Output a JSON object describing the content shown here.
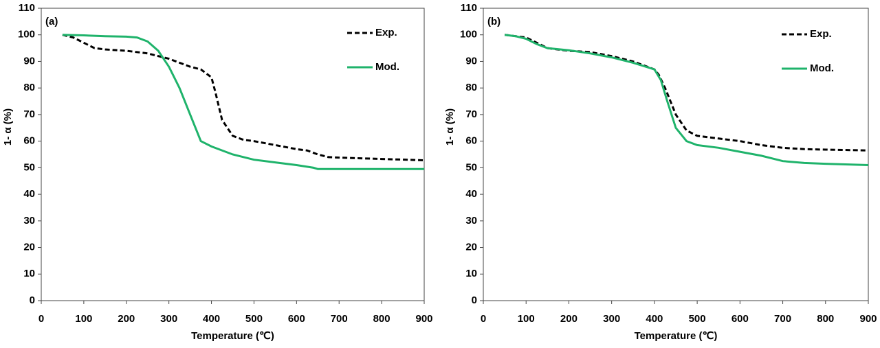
{
  "chart_data": [
    {
      "type": "line",
      "panel_label": "(a)",
      "x_label": "Temperature (℃)",
      "y_label": "1- α (%)",
      "xlim": [
        0,
        900
      ],
      "xticks": [
        0,
        100,
        200,
        300,
        400,
        500,
        600,
        700,
        800,
        900
      ],
      "ylim": [
        0,
        110
      ],
      "yticks": [
        0,
        10,
        20,
        30,
        40,
        50,
        60,
        70,
        80,
        90,
        100,
        110
      ],
      "series": [
        {
          "name": "Exp.",
          "color": "#000000",
          "dashed": true,
          "x": [
            50,
            75,
            100,
            125,
            150,
            200,
            250,
            300,
            350,
            375,
            400,
            410,
            425,
            450,
            475,
            500,
            550,
            600,
            625,
            650,
            675,
            700,
            800,
            900
          ],
          "values": [
            100,
            99,
            97,
            95,
            94.5,
            94,
            93,
            91,
            88,
            87,
            84,
            78,
            68,
            62,
            60.5,
            60,
            58.5,
            57,
            56.5,
            55,
            54,
            53.8,
            53.3,
            52.8
          ]
        },
        {
          "name": "Mod.",
          "color": "#1fb36b",
          "dashed": false,
          "x": [
            50,
            100,
            150,
            200,
            225,
            250,
            275,
            300,
            325,
            350,
            375,
            400,
            450,
            500,
            550,
            600,
            640,
            650,
            700,
            800,
            900
          ],
          "values": [
            100,
            99.8,
            99.5,
            99.3,
            99,
            97.5,
            94,
            88,
            80,
            70,
            60,
            58,
            55,
            53,
            52,
            51,
            50,
            49.5,
            49.5,
            49.5,
            49.5
          ]
        }
      ]
    },
    {
      "type": "line",
      "panel_label": "(b)",
      "x_label": "Temperature (℃)",
      "y_label": "1- α (%)",
      "xlim": [
        0,
        900
      ],
      "xticks": [
        0,
        100,
        200,
        300,
        400,
        500,
        600,
        700,
        800,
        900
      ],
      "ylim": [
        0,
        110
      ],
      "yticks": [
        0,
        10,
        20,
        30,
        40,
        50,
        60,
        70,
        80,
        90,
        100,
        110
      ],
      "series": [
        {
          "name": "Exp.",
          "color": "#000000",
          "dashed": true,
          "x": [
            50,
            100,
            125,
            150,
            200,
            250,
            300,
            350,
            400,
            410,
            425,
            450,
            475,
            500,
            550,
            600,
            650,
            700,
            750,
            800,
            900
          ],
          "values": [
            100,
            99,
            97,
            95,
            94,
            93.5,
            92,
            90,
            87,
            85,
            80,
            70,
            64,
            62,
            61,
            60,
            58.5,
            57.5,
            57,
            56.8,
            56.5
          ]
        },
        {
          "name": "Mod.",
          "color": "#1fb36b",
          "dashed": false,
          "x": [
            50,
            75,
            100,
            125,
            150,
            200,
            250,
            300,
            350,
            400,
            415,
            430,
            450,
            475,
            500,
            550,
            600,
            650,
            700,
            750,
            800,
            900
          ],
          "values": [
            100,
            99.5,
            98.5,
            96.5,
            95,
            94.2,
            93,
            91.5,
            89.5,
            87,
            83,
            75,
            65,
            60,
            58.5,
            57.5,
            56,
            54.5,
            52.5,
            51.8,
            51.5,
            51
          ]
        }
      ]
    }
  ]
}
